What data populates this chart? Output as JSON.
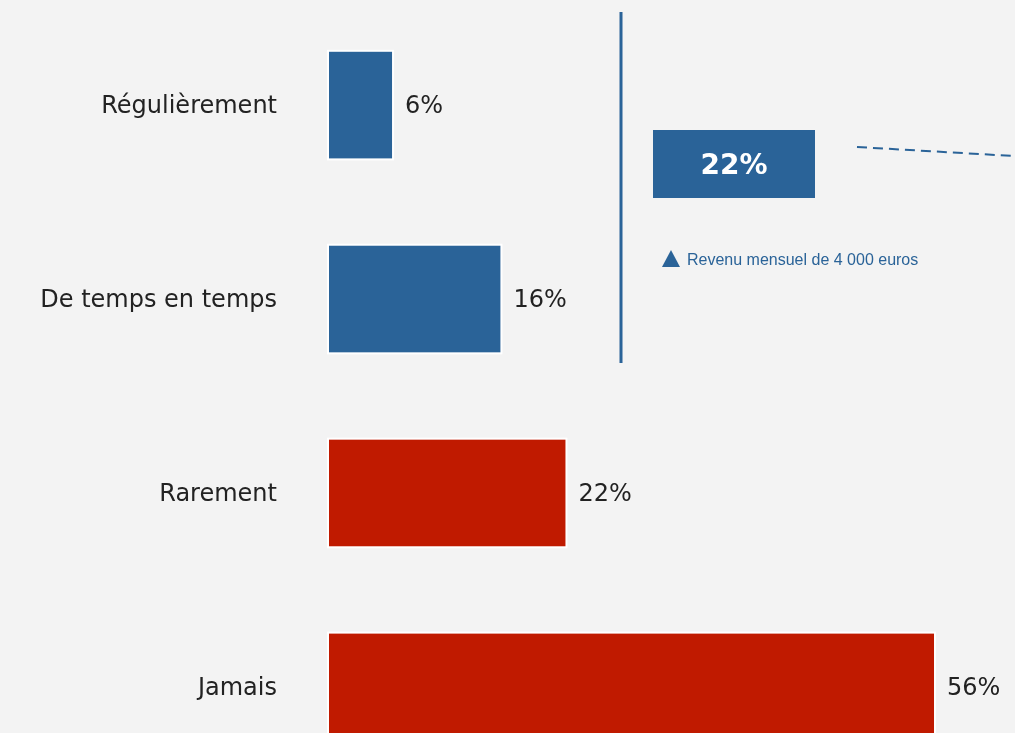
{
  "chart_data": {
    "type": "bar",
    "orientation": "horizontal",
    "categories": [
      "Régulièrement",
      "De temps en temps",
      "Rarement",
      "Jamais"
    ],
    "values": [
      6,
      16,
      22,
      56
    ],
    "colors": [
      "#2a6398",
      "#2a6398",
      "#c01a00",
      "#c01a00"
    ],
    "value_labels": [
      "6%",
      "16%",
      "22%",
      "56%"
    ],
    "annotations": [
      "22%",
      "Revenu mensuel de 4 000 euros"
    ]
  }
}
